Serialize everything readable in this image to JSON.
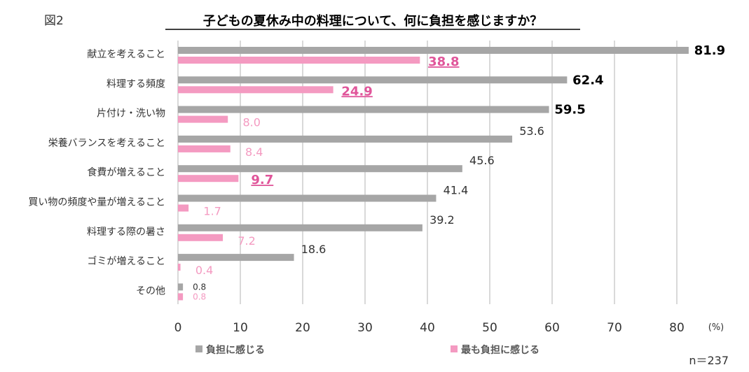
{
  "figure_label": "図2",
  "title": "子どもの夏休み中の料理について、何に負担を感じますか？",
  "unit_label": "(%)",
  "sample_size": "n＝237",
  "colors": {
    "gray": "#a6a6a6",
    "pink": "#f49ac1",
    "pink_text": "#e0559a",
    "grid": "#d9d9d9",
    "text": "#333333"
  },
  "chart_data": {
    "type": "bar",
    "orientation": "horizontal",
    "title": "子どもの夏休み中の料理について、何に負担を感じますか？",
    "xlabel": "(%)",
    "ylabel": "",
    "xlim": [
      0,
      85
    ],
    "xticks": [
      0,
      10,
      20,
      30,
      40,
      50,
      60,
      70,
      80
    ],
    "grid": true,
    "legend": "bottom",
    "categories": [
      "献立を考えること",
      "料理する頻度",
      "片付け・洗い物",
      "栄養バランスを考えること",
      "食費が増えること",
      "買い物の頻度や量が増えること",
      "料理する際の暑さ",
      "ゴミが増えること",
      "その他"
    ],
    "series": [
      {
        "name": "負担に感じる",
        "color": "#a6a6a6",
        "values": [
          81.9,
          62.4,
          59.5,
          53.6,
          45.6,
          41.4,
          39.2,
          18.6,
          0.8
        ],
        "emphasis": [
          true,
          true,
          true,
          false,
          false,
          false,
          false,
          false,
          false
        ]
      },
      {
        "name": "最も負担に感じる",
        "color": "#f49ac1",
        "values": [
          38.8,
          24.9,
          8.0,
          8.4,
          9.7,
          1.7,
          7.2,
          0.4,
          0.8
        ],
        "emphasis": [
          true,
          true,
          false,
          false,
          true,
          false,
          false,
          false,
          false
        ]
      }
    ]
  }
}
